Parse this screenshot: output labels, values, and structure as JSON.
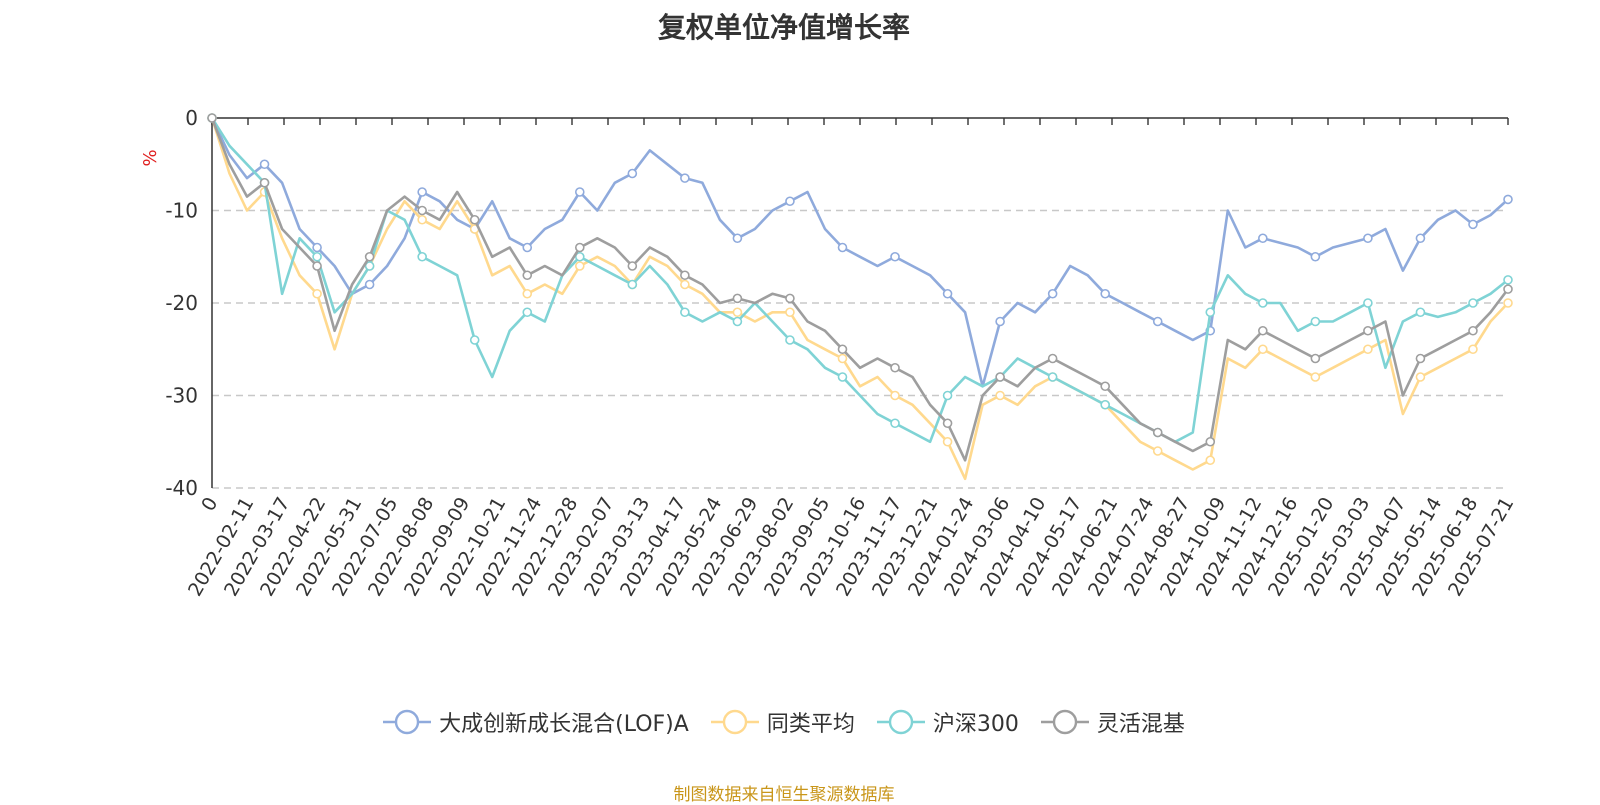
{
  "chart_data": {
    "type": "line",
    "title": "复权单位净值增长率",
    "ylabel": "%",
    "ylim": [
      -40,
      0
    ],
    "yticks": [
      0,
      -10,
      -20,
      -30,
      -40
    ],
    "grid": true,
    "legend_position": "bottom",
    "x_tick_labels": [
      "0",
      "2022-02-11",
      "2022-03-17",
      "2022-04-22",
      "2022-05-31",
      "2022-07-05",
      "2022-08-08",
      "2022-09-09",
      "2022-10-21",
      "2022-11-24",
      "2022-12-28",
      "2023-02-07",
      "2023-03-13",
      "2023-04-17",
      "2023-05-24",
      "2023-06-29",
      "2023-08-02",
      "2023-09-05",
      "2023-10-16",
      "2023-11-17",
      "2023-12-21",
      "2024-01-24",
      "2024-03-06",
      "2024-04-10",
      "2024-05-17",
      "2024-06-21",
      "2024-07-24",
      "2024-08-27",
      "2024-10-09",
      "2024-11-12",
      "2024-12-16",
      "2025-01-20",
      "2025-03-03",
      "2025-04-07",
      "2025-05-14",
      "2025-06-18",
      "2025-07-21"
    ],
    "series": [
      {
        "name": "大成创新成长混合(LOF)A",
        "color": "#8faadc",
        "values": [
          0,
          -4,
          -6.5,
          -5,
          -7,
          -12,
          -14,
          -16,
          -19,
          -18,
          -16,
          -13,
          -8,
          -9,
          -11,
          -12,
          -9,
          -13,
          -14,
          -12,
          -11,
          -8,
          -10,
          -7,
          -6,
          -3.5,
          -5,
          -6.5,
          -7,
          -11,
          -13,
          -12,
          -10,
          -9,
          -8,
          -12,
          -14,
          -15,
          -16,
          -15,
          -16,
          -17,
          -19,
          -21,
          -29,
          -22,
          -20,
          -21,
          -19,
          -16,
          -17,
          -19,
          -20,
          -21,
          -22,
          -23,
          -24,
          -23,
          -10,
          -14,
          -13,
          -13.5,
          -14,
          -15,
          -14,
          -13.5,
          -13,
          -12,
          -16.5,
          -13,
          -11,
          -10,
          -11.5,
          -10.5,
          -8.8
        ]
      },
      {
        "name": "同类平均",
        "color": "#ffd98e",
        "values": [
          0,
          -6,
          -10,
          -8,
          -13,
          -17,
          -19,
          -25,
          -19,
          -16,
          -12,
          -9,
          -11,
          -12,
          -9,
          -12,
          -17,
          -16,
          -19,
          -18,
          -19,
          -16,
          -15,
          -16,
          -18,
          -15,
          -16,
          -18,
          -19,
          -21,
          -21,
          -22,
          -21,
          -21,
          -24,
          -25,
          -26,
          -29,
          -28,
          -30,
          -31,
          -33,
          -35,
          -39,
          -31,
          -30,
          -31,
          -29,
          -28,
          -29,
          -30,
          -31,
          -33,
          -35,
          -36,
          -37,
          -38,
          -37,
          -26,
          -27,
          -25,
          -26,
          -27,
          -28,
          -27,
          -26,
          -25,
          -24,
          -32,
          -28,
          -27,
          -26,
          -25,
          -22,
          -20
        ]
      },
      {
        "name": "沪深300",
        "color": "#7fd3d5",
        "values": [
          0,
          -3,
          -5,
          -7,
          -19,
          -13,
          -15,
          -21,
          -19,
          -16,
          -10,
          -11,
          -15,
          -16,
          -17,
          -24,
          -28,
          -23,
          -21,
          -22,
          -17,
          -15,
          -16,
          -17,
          -18,
          -16,
          -18,
          -21,
          -22,
          -21,
          -22,
          -20,
          -22,
          -24,
          -25,
          -27,
          -28,
          -30,
          -32,
          -33,
          -34,
          -35,
          -30,
          -28,
          -29,
          -28,
          -26,
          -27,
          -28,
          -29,
          -30,
          -31,
          -32,
          -33,
          -34,
          -35,
          -34,
          -21,
          -17,
          -19,
          -20,
          -20,
          -23,
          -22,
          -22,
          -21,
          -20,
          -27,
          -22,
          -21,
          -21.5,
          -21,
          -20,
          -19,
          -17.5
        ]
      },
      {
        "name": "灵活混基",
        "color": "#9e9e9e",
        "values": [
          0,
          -5,
          -8.5,
          -7,
          -12,
          -14,
          -16,
          -23,
          -18,
          -15,
          -10,
          -8.5,
          -10,
          -11,
          -8,
          -11,
          -15,
          -14,
          -17,
          -16,
          -17,
          -14,
          -13,
          -14,
          -16,
          -14,
          -15,
          -17,
          -18,
          -20,
          -19.5,
          -20,
          -19,
          -19.5,
          -22,
          -23,
          -25,
          -27,
          -26,
          -27,
          -28,
          -31,
          -33,
          -37,
          -30,
          -28,
          -29,
          -27,
          -26,
          -27,
          -28,
          -29,
          -31,
          -33,
          -34,
          -35,
          -36,
          -35,
          -24,
          -25,
          -23,
          -24,
          -25,
          -26,
          -25,
          -24,
          -23,
          -22,
          -30,
          -26,
          -25,
          -24,
          -23,
          -21,
          -18.5
        ]
      }
    ]
  },
  "legend": {
    "items": [
      "大成创新成长混合(LOF)A",
      "同类平均",
      "沪深300",
      "灵活混基"
    ]
  },
  "footer": {
    "source": "制图数据来自恒生聚源数据库"
  }
}
